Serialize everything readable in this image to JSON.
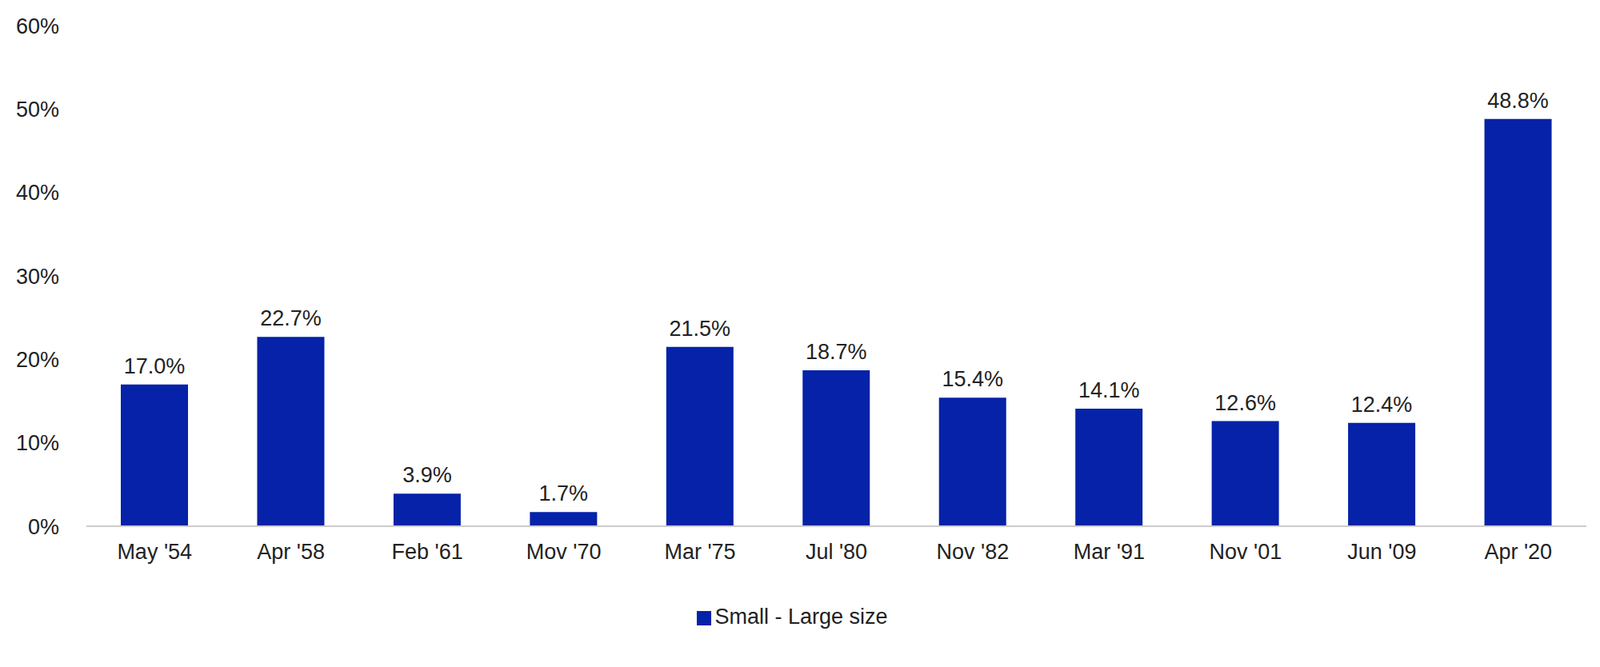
{
  "chart_data": {
    "type": "bar",
    "categories": [
      "May '54",
      "Apr '58",
      "Feb '61",
      "Mov '70",
      "Mar '75",
      "Jul '80",
      "Nov '82",
      "Mar '91",
      "Nov '01",
      "Jun '09",
      "Apr '20"
    ],
    "series": [
      {
        "name": "Small - Large size",
        "color": "#0522a8",
        "values": [
          17.0,
          22.7,
          3.9,
          1.7,
          21.5,
          18.7,
          15.4,
          14.1,
          12.6,
          12.4,
          48.8
        ],
        "value_labels": [
          "17.0%",
          "22.7%",
          "3.9%",
          "1.7%",
          "21.5%",
          "18.7%",
          "15.4%",
          "14.1%",
          "12.6%",
          "12.4%",
          "48.8%"
        ]
      }
    ],
    "ylim": [
      0,
      60
    ],
    "yticks": [
      {
        "value": 0,
        "label": "0%"
      },
      {
        "value": 10,
        "label": "10%"
      },
      {
        "value": 20,
        "label": "20%"
      },
      {
        "value": 30,
        "label": "30%"
      },
      {
        "value": 40,
        "label": "40%"
      },
      {
        "value": 50,
        "label": "50%"
      },
      {
        "value": 60,
        "label": "60%"
      }
    ],
    "grid": false,
    "legend": "bottom",
    "data_labels": true
  }
}
